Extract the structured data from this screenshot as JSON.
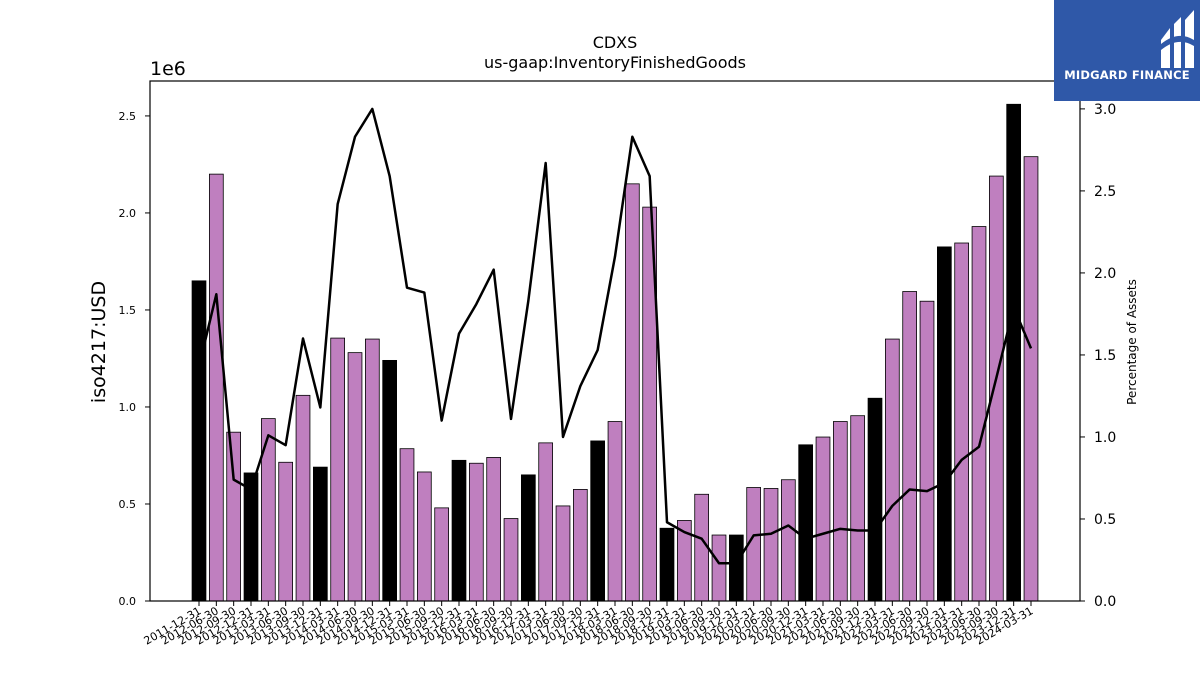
{
  "logo": {
    "text": "MIDGARD FINANCE",
    "bg_color": "#2f58a8"
  },
  "chart_data": {
    "type": "bar",
    "title": "CDXS",
    "subtitle": "us-gaap:InventoryFinishedGoods",
    "ylabel": "iso4217:USD",
    "y_offset_label": "1e6",
    "y2label": "Percentage of Assets",
    "ylim": [
      0,
      2.68
    ],
    "y2lim": [
      0,
      3.17
    ],
    "yticks": [
      "0.0",
      "0.5",
      "1.0",
      "1.5",
      "2.0",
      "2.5"
    ],
    "y2ticks": [
      "0.0",
      "0.5",
      "1.0",
      "1.5",
      "2.0",
      "2.5",
      "3.0"
    ],
    "colors": {
      "annual": "#000000",
      "quarterly": "#bf7fbf",
      "line": "#000000"
    },
    "categories": [
      "2011-12-31",
      "2012-06-30",
      "2012-09-30",
      "2012-12-31",
      "2013-03-31",
      "2013-06-30",
      "2013-09-30",
      "2013-12-31",
      "2014-03-31",
      "2014-06-30",
      "2014-09-30",
      "2014-12-31",
      "2015-03-31",
      "2015-06-30",
      "2015-09-30",
      "2015-12-31",
      "2016-03-31",
      "2016-06-30",
      "2016-09-30",
      "2016-12-31",
      "2017-03-31",
      "2017-06-30",
      "2017-09-30",
      "2017-12-31",
      "2018-03-31",
      "2018-06-30",
      "2018-09-30",
      "2018-12-31",
      "2019-03-31",
      "2019-06-30",
      "2019-09-30",
      "2019-12-31",
      "2020-03-31",
      "2020-06-30",
      "2020-09-30",
      "2020-12-31",
      "2021-03-31",
      "2021-06-30",
      "2021-09-30",
      "2021-12-31",
      "2022-03-31",
      "2022-06-30",
      "2022-09-30",
      "2022-12-31",
      "2023-03-31",
      "2023-06-30",
      "2023-09-30",
      "2023-12-31",
      "2024-03-31"
    ],
    "series": [
      {
        "values": [
          1.65,
          2.2,
          0.87,
          0.66,
          0.94,
          0.715,
          1.06,
          0.69,
          1.355,
          1.28,
          1.35,
          1.24,
          0.785,
          0.665,
          0.48,
          0.725,
          0.71,
          0.74,
          0.425,
          0.65,
          0.815,
          0.49,
          0.575,
          0.825,
          0.925,
          2.15,
          2.03,
          0.375,
          0.415,
          0.55,
          0.34,
          0.34,
          0.585,
          0.58,
          0.625,
          0.805,
          0.845,
          0.925,
          0.955,
          1.045,
          1.35,
          1.595,
          1.545,
          1.825,
          1.845,
          1.93,
          2.19,
          2.56,
          2.29
        ],
        "annual": [
          1,
          0,
          0,
          1,
          0,
          0,
          0,
          1,
          0,
          0,
          0,
          1,
          0,
          0,
          0,
          1,
          0,
          0,
          0,
          1,
          0,
          0,
          0,
          1,
          0,
          0,
          0,
          1,
          0,
          0,
          0,
          1,
          0,
          0,
          0,
          1,
          0,
          0,
          0,
          1,
          0,
          0,
          0,
          1,
          0,
          0,
          0,
          1,
          0
        ]
      },
      {
        "axis": "right",
        "values": [
          1.43,
          1.87,
          0.74,
          0.68,
          1.01,
          0.95,
          1.6,
          1.18,
          2.42,
          2.83,
          3.0,
          2.59,
          1.91,
          1.88,
          1.1,
          1.63,
          1.81,
          2.02,
          1.11,
          1.83,
          2.67,
          1.0,
          1.31,
          1.53,
          2.1,
          2.83,
          2.59,
          0.48,
          0.42,
          0.38,
          0.23,
          0.23,
          0.4,
          0.41,
          0.46,
          0.38,
          0.41,
          0.44,
          0.43,
          0.43,
          0.58,
          0.68,
          0.67,
          0.72,
          0.86,
          0.94,
          1.36,
          1.79,
          1.54
        ]
      }
    ]
  }
}
